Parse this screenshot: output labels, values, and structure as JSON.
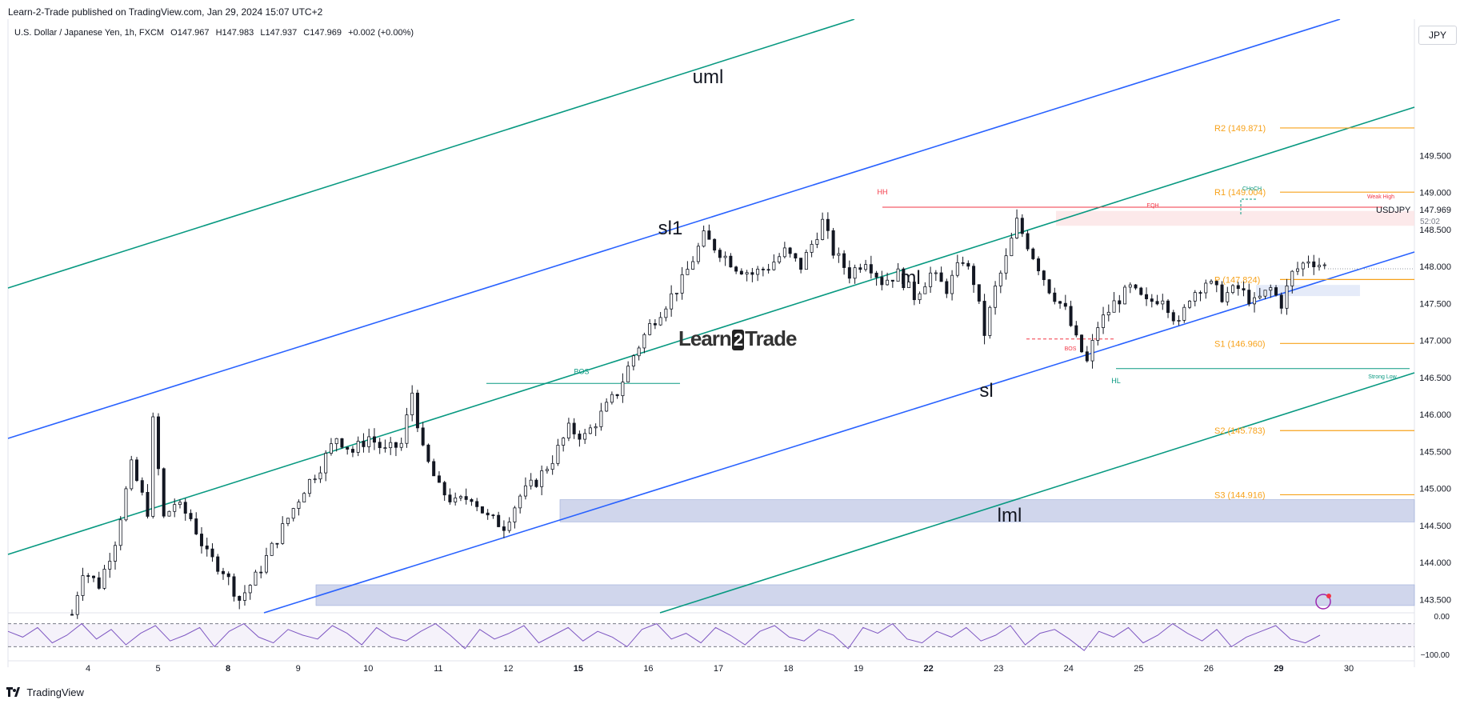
{
  "header": {
    "published": "Learn-2-Trade published on TradingView.com, Jan 29, 2024 15:07 UTC+2"
  },
  "legend": {
    "title": "U.S. Dollar / Japanese Yen, 1h, FXCM",
    "open": "O147.967",
    "high": "H147.983",
    "low": "L147.937",
    "close": "C147.969",
    "change": "+0.002 (+0.00%)"
  },
  "currency_button": "JPY",
  "footer": {
    "brand": "TradingView"
  },
  "watermark": {
    "left": "Learn",
    "mid": "2",
    "right": "Trade"
  },
  "colors": {
    "up": "#131722",
    "down": "#131722",
    "green_channel": "#089981",
    "blue_channel": "#2962ff",
    "pivot": "#f7a21b",
    "resistance_line": "#f23645",
    "zone": "#c5cde8",
    "rsi": "#7e57c2"
  },
  "chart_data": {
    "type": "candlestick",
    "symbol": "USDJPY",
    "last_price": "147.969",
    "countdown": "52:02",
    "ylim": [
      143.3,
      150.0
    ],
    "y_ticks": [
      "149.500",
      "149.000",
      "148.500",
      "148.000",
      "147.500",
      "147.000",
      "146.500",
      "146.000",
      "145.500",
      "145.000",
      "144.500",
      "144.000",
      "143.500"
    ],
    "x_ticks": [
      "4",
      "5",
      "8",
      "9",
      "10",
      "11",
      "12",
      "15",
      "16",
      "17",
      "18",
      "19",
      "22",
      "23",
      "24",
      "25",
      "26",
      "29",
      "30"
    ],
    "x_bold": [
      "8",
      "15",
      "22",
      "29"
    ],
    "path_points": [
      [
        0,
        143.3
      ],
      [
        2,
        143.9
      ],
      [
        5,
        143.7
      ],
      [
        8,
        144.3
      ],
      [
        11,
        145.3
      ],
      [
        14,
        144.7
      ],
      [
        15,
        145.9
      ],
      [
        17,
        144.6
      ],
      [
        19,
        144.8
      ],
      [
        22,
        144.6
      ],
      [
        25,
        144.1
      ],
      [
        28,
        143.9
      ],
      [
        31,
        143.5
      ],
      [
        34,
        143.8
      ],
      [
        37,
        144.2
      ],
      [
        40,
        144.6
      ],
      [
        43,
        145.0
      ],
      [
        46,
        145.3
      ],
      [
        49,
        145.7
      ],
      [
        52,
        145.5
      ],
      [
        55,
        145.7
      ],
      [
        58,
        145.5
      ],
      [
        61,
        145.6
      ],
      [
        63,
        146.3
      ],
      [
        65,
        145.5
      ],
      [
        68,
        145.0
      ],
      [
        71,
        144.8
      ],
      [
        74,
        144.9
      ],
      [
        77,
        144.6
      ],
      [
        80,
        144.5
      ],
      [
        83,
        144.9
      ],
      [
        86,
        145.1
      ],
      [
        89,
        145.4
      ],
      [
        92,
        145.8
      ],
      [
        95,
        145.7
      ],
      [
        98,
        146.0
      ],
      [
        101,
        146.3
      ],
      [
        104,
        146.8
      ],
      [
        107,
        147.2
      ],
      [
        110,
        147.5
      ],
      [
        113,
        147.8
      ],
      [
        115,
        148.1
      ],
      [
        117,
        148.4
      ],
      [
        120,
        148.2
      ],
      [
        123,
        148.0
      ],
      [
        126,
        147.9
      ],
      [
        129,
        148.0
      ],
      [
        132,
        148.2
      ],
      [
        135,
        148.0
      ],
      [
        137,
        148.3
      ],
      [
        139,
        148.6
      ],
      [
        141,
        148.2
      ],
      [
        144,
        147.9
      ],
      [
        147,
        148.1
      ],
      [
        150,
        147.8
      ],
      [
        153,
        147.9
      ],
      [
        156,
        147.6
      ],
      [
        159,
        147.9
      ],
      [
        162,
        147.7
      ],
      [
        165,
        148.1
      ],
      [
        167,
        147.8
      ],
      [
        169,
        147.1
      ],
      [
        171,
        147.7
      ],
      [
        173,
        148.1
      ],
      [
        175,
        148.6
      ],
      [
        177,
        148.3
      ],
      [
        179,
        148.0
      ],
      [
        181,
        147.7
      ],
      [
        184,
        147.4
      ],
      [
        186,
        147.0
      ],
      [
        188,
        146.7
      ],
      [
        190,
        147.2
      ],
      [
        193,
        147.5
      ],
      [
        196,
        147.7
      ],
      [
        199,
        147.5
      ],
      [
        202,
        147.6
      ],
      [
        205,
        147.2
      ],
      [
        207,
        147.6
      ],
      [
        210,
        147.8
      ],
      [
        213,
        147.6
      ],
      [
        216,
        147.7
      ],
      [
        219,
        147.5
      ],
      [
        222,
        147.7
      ],
      [
        224,
        147.5
      ],
      [
        226,
        147.9
      ],
      [
        229,
        148.1
      ],
      [
        232,
        148.0
      ],
      [
        234,
        148.2
      ],
      [
        236,
        148.0
      ],
      [
        238,
        147.8
      ],
      [
        240,
        147.7
      ],
      [
        243,
        147.97
      ]
    ],
    "ml_channel": {
      "uml": "uml",
      "sl1": "sl1",
      "ml": "ml",
      "sl": "sl",
      "lml": "lml"
    },
    "annotations": {
      "bos_left": "BOS",
      "hh": "HH",
      "weak_high": "Weak High",
      "eqh": "EQH",
      "choch": "CHoCH",
      "bos_right": "BOS",
      "hl": "HL",
      "strong_low": "Strong Low"
    },
    "pivots": [
      {
        "label": "R2 (149.871)",
        "value": 149.871
      },
      {
        "label": "R1 (149.004)",
        "value": 149.004
      },
      {
        "label": "P (147.824)",
        "value": 147.824
      },
      {
        "label": "S1 (146.960)",
        "value": 146.96
      },
      {
        "label": "S2 (145.783)",
        "value": 145.783
      },
      {
        "label": "S3 (144.916)",
        "value": 144.916
      }
    ],
    "zones": [
      {
        "y1": 144.55,
        "y2": 144.85
      },
      {
        "y1": 143.42,
        "y2": 143.7
      },
      {
        "y1": 147.6,
        "y2": 147.75
      },
      {
        "y1": 148.55,
        "y2": 148.75
      }
    ],
    "resistance_line": 148.8,
    "hl_level": 146.62,
    "bos_left_level": 146.42,
    "bos_right_level": 147.02,
    "rsi": {
      "y_ticks": [
        "0.00",
        "−100.00"
      ],
      "upper_band": -20,
      "lower_band": -80,
      "values": [
        -40,
        -55,
        -30,
        -70,
        -50,
        -20,
        -60,
        -35,
        -75,
        -45,
        -25,
        -65,
        -50,
        -30,
        -80,
        -40,
        -20,
        -55,
        -70,
        -35,
        -50,
        -60,
        -25,
        -45,
        -75,
        -30,
        -55,
        -65,
        -40,
        -20,
        -50,
        -85,
        -35,
        -60,
        -45,
        -25,
        -70,
        -50,
        -30,
        -65,
        -40,
        -55,
        -80,
        -35,
        -20,
        -60,
        -45,
        -70,
        -30,
        -50,
        -75,
        -40,
        -25,
        -55,
        -65,
        -35,
        -50,
        -85,
        -30,
        -45,
        -20,
        -60,
        -70,
        -40,
        -55,
        -30,
        -65,
        -50,
        -25,
        -75,
        -45,
        -35,
        -60,
        -90,
        -40,
        -55,
        -30,
        -70,
        -50,
        -20,
        -45,
        -65,
        -35,
        -80,
        -55,
        -40,
        -25,
        -60,
        -70,
        -50
      ]
    }
  }
}
